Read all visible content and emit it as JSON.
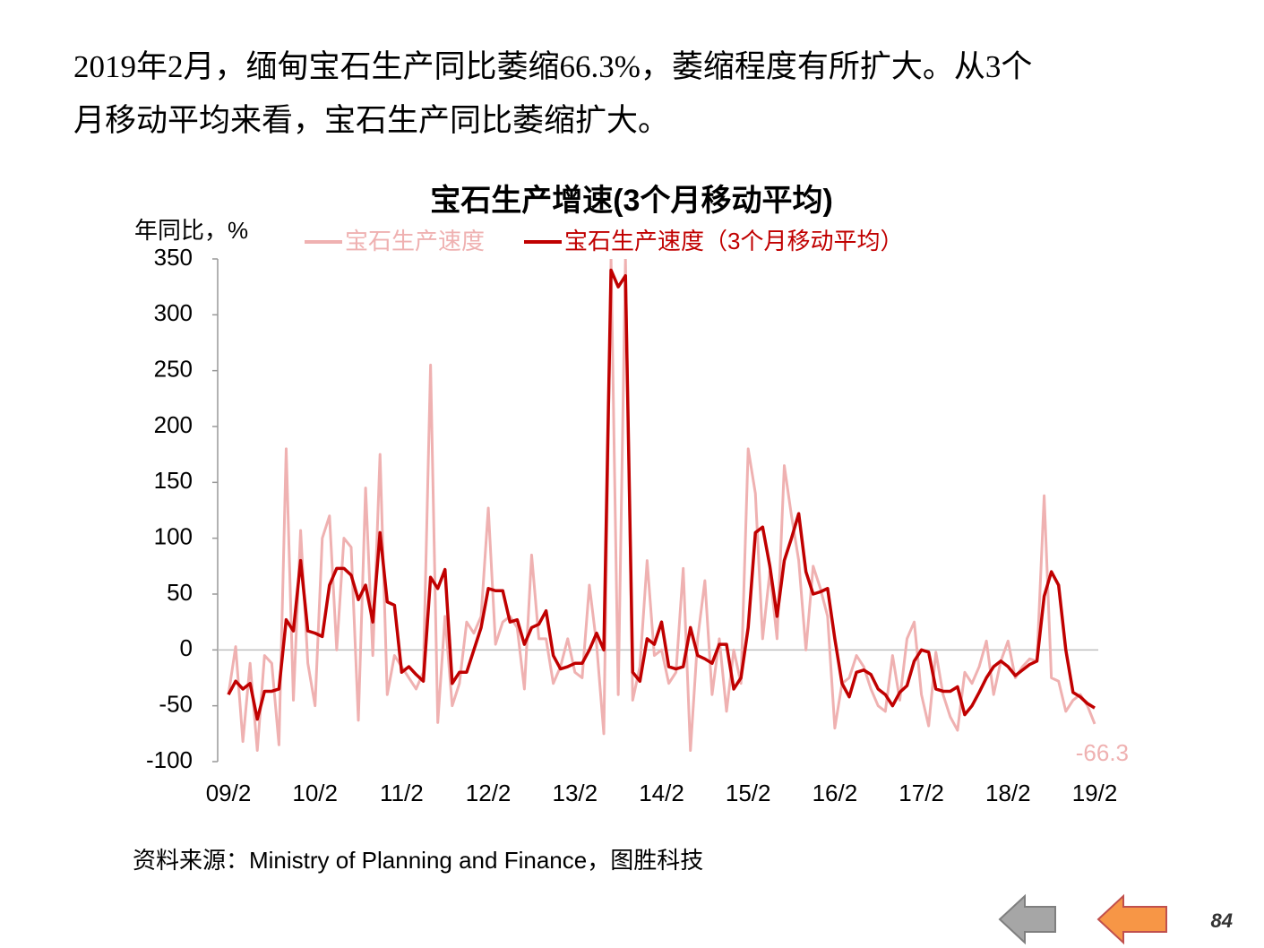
{
  "slide": {
    "paragraph": [
      "2019年2月，缅甸宝石生产同比萎缩66.3%，萎缩程度有所扩大。从3个",
      "月移动平均来看，宝石生产同比萎缩扩大。"
    ],
    "source": "资料来源：Ministry of Planning and Finance，图胜科技",
    "page": "84"
  },
  "chart_data": {
    "type": "line",
    "title": "宝石生产增速(3个月移动平均)",
    "y_label": "年同比，%",
    "categories": [
      "09/2",
      null,
      null,
      null,
      null,
      null,
      null,
      null,
      null,
      null,
      null,
      null,
      "10/2",
      null,
      null,
      null,
      null,
      null,
      null,
      null,
      null,
      null,
      null,
      null,
      "11/2",
      null,
      null,
      null,
      null,
      null,
      null,
      null,
      null,
      null,
      null,
      null,
      "12/2",
      null,
      null,
      null,
      null,
      null,
      null,
      null,
      null,
      null,
      null,
      null,
      "13/2",
      null,
      null,
      null,
      null,
      null,
      null,
      null,
      null,
      null,
      null,
      null,
      "14/2",
      null,
      null,
      null,
      null,
      null,
      null,
      null,
      null,
      null,
      null,
      null,
      "15/2",
      null,
      null,
      null,
      null,
      null,
      null,
      null,
      null,
      null,
      null,
      null,
      "16/2",
      null,
      null,
      null,
      null,
      null,
      null,
      null,
      null,
      null,
      null,
      null,
      "17/2",
      null,
      null,
      null,
      null,
      null,
      null,
      null,
      null,
      null,
      null,
      null,
      "18/2",
      null,
      null,
      null,
      null,
      null,
      null,
      null,
      null,
      null,
      null,
      null,
      "19/2"
    ],
    "series": [
      {
        "name": "宝石生产速度",
        "color": "#efb1b1",
        "values": [
          -40,
          3,
          -82,
          -12,
          -90,
          -5,
          -12,
          -85,
          180,
          -45,
          107,
          -12,
          -50,
          100,
          120,
          0,
          100,
          92,
          -63,
          145,
          -5,
          175,
          -40,
          -5,
          -15,
          -25,
          -35,
          -20,
          255,
          -65,
          30,
          -50,
          -30,
          25,
          15,
          30,
          127,
          5,
          25,
          30,
          20,
          -35,
          85,
          10,
          10,
          -30,
          -15,
          10,
          -20,
          -25,
          58,
          5,
          -75,
          350,
          -40,
          350,
          -45,
          -15,
          80,
          -5,
          0,
          -30,
          -20,
          73,
          -90,
          10,
          62,
          -40,
          10,
          -55,
          0,
          -30,
          180,
          140,
          10,
          70,
          10,
          165,
          120,
          80,
          0,
          75,
          55,
          30,
          -70,
          -30,
          -25,
          -5,
          -15,
          -35,
          -50,
          -55,
          -5,
          -45,
          10,
          25,
          -40,
          -68,
          -2,
          -40,
          -60,
          -72,
          -20,
          -30,
          -15,
          8,
          -40,
          -10,
          8,
          -25,
          -15,
          -8,
          -10,
          138,
          -25,
          -28,
          -55,
          -45,
          -40,
          -50,
          -66.3
        ]
      },
      {
        "name": "宝石生产速度（3个月移动平均）",
        "color": "#c00000",
        "values": [
          -40,
          -28,
          -35,
          -30,
          -62,
          -37,
          -37,
          -35,
          27,
          17,
          80,
          17,
          15,
          12,
          58,
          73,
          73,
          67,
          45,
          58,
          25,
          105,
          43,
          40,
          -20,
          -15,
          -22,
          -28,
          65,
          55,
          72,
          -30,
          -20,
          -20,
          0,
          20,
          55,
          53,
          53,
          25,
          27,
          5,
          20,
          23,
          35,
          -5,
          -17,
          -15,
          -12,
          -12,
          0,
          15,
          0,
          340,
          325,
          335,
          -20,
          -28,
          10,
          5,
          25,
          -15,
          -17,
          -15,
          20,
          -5,
          -8,
          -12,
          5,
          5,
          -35,
          -25,
          20,
          105,
          110,
          75,
          30,
          80,
          100,
          122,
          70,
          50,
          52,
          55,
          10,
          -30,
          -42,
          -20,
          -18,
          -22,
          -35,
          -40,
          -50,
          -38,
          -32,
          -10,
          0,
          -2,
          -35,
          -37,
          -37,
          -33,
          -58,
          -50,
          -38,
          -25,
          -15,
          -10,
          -15,
          -23,
          -18,
          -13,
          -10,
          48,
          70,
          58,
          0,
          -38,
          -42,
          -48,
          -52
        ]
      }
    ],
    "ylim": [
      -100,
      350
    ],
    "yticks": [
      -100,
      -50,
      0,
      50,
      100,
      150,
      200,
      250,
      300,
      350
    ]
  }
}
